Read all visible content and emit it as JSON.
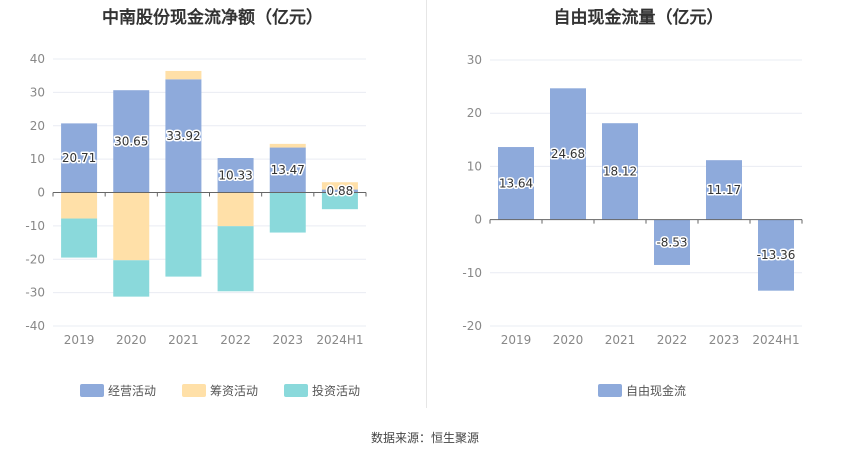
{
  "colors": {
    "operating": "#8eaadb",
    "financing": "#ffe0a8",
    "investing": "#8ad9db",
    "free_cash_flow": "#8eaadb",
    "axis_text": "#888888",
    "grid": "#e9ecf3",
    "zero_line": "#666666"
  },
  "source": "数据来源：恒生聚源",
  "chart_data": [
    {
      "type": "bar",
      "stacked": true,
      "title": "中南股份现金流净额（亿元）",
      "categories": [
        "2019",
        "2020",
        "2021",
        "2022",
        "2023",
        "2024H1"
      ],
      "ylim": [
        -40,
        40
      ],
      "yticks": [
        "40",
        "30",
        "20",
        "10",
        "0",
        "-10",
        "-20",
        "-30",
        "-40"
      ],
      "grid": true,
      "legend_position": "bottom",
      "series": [
        {
          "name": "经营活动",
          "color_key": "operating",
          "values": [
            20.71,
            30.65,
            33.92,
            10.33,
            13.47,
            0.88
          ]
        },
        {
          "name": "筹资活动",
          "color_key": "financing",
          "values": [
            -7.8,
            -20.3,
            2.5,
            -10.1,
            1.1,
            2.2
          ]
        },
        {
          "name": "投资活动",
          "color_key": "investing",
          "values": [
            -11.7,
            -10.9,
            -25.2,
            -19.5,
            -12.0,
            -5.0
          ]
        }
      ],
      "data_labels": [
        "20.71",
        "30.65",
        "33.92",
        "10.33",
        "13.47",
        "0.88"
      ]
    },
    {
      "type": "bar",
      "title": "自由现金流量（亿元）",
      "categories": [
        "2019",
        "2020",
        "2021",
        "2022",
        "2023",
        "2024H1"
      ],
      "ylim": [
        -20,
        30
      ],
      "yticks": [
        "30",
        "20",
        "10",
        "0",
        "-10",
        "-20"
      ],
      "grid": true,
      "legend_position": "bottom",
      "series": [
        {
          "name": "自由现金流",
          "color_key": "free_cash_flow",
          "values": [
            13.64,
            24.68,
            18.12,
            -8.53,
            11.17,
            -13.36
          ]
        }
      ],
      "data_labels": [
        "13.64",
        "24.68",
        "18.12",
        "-8.53",
        "11.17",
        "-13.36"
      ]
    }
  ]
}
